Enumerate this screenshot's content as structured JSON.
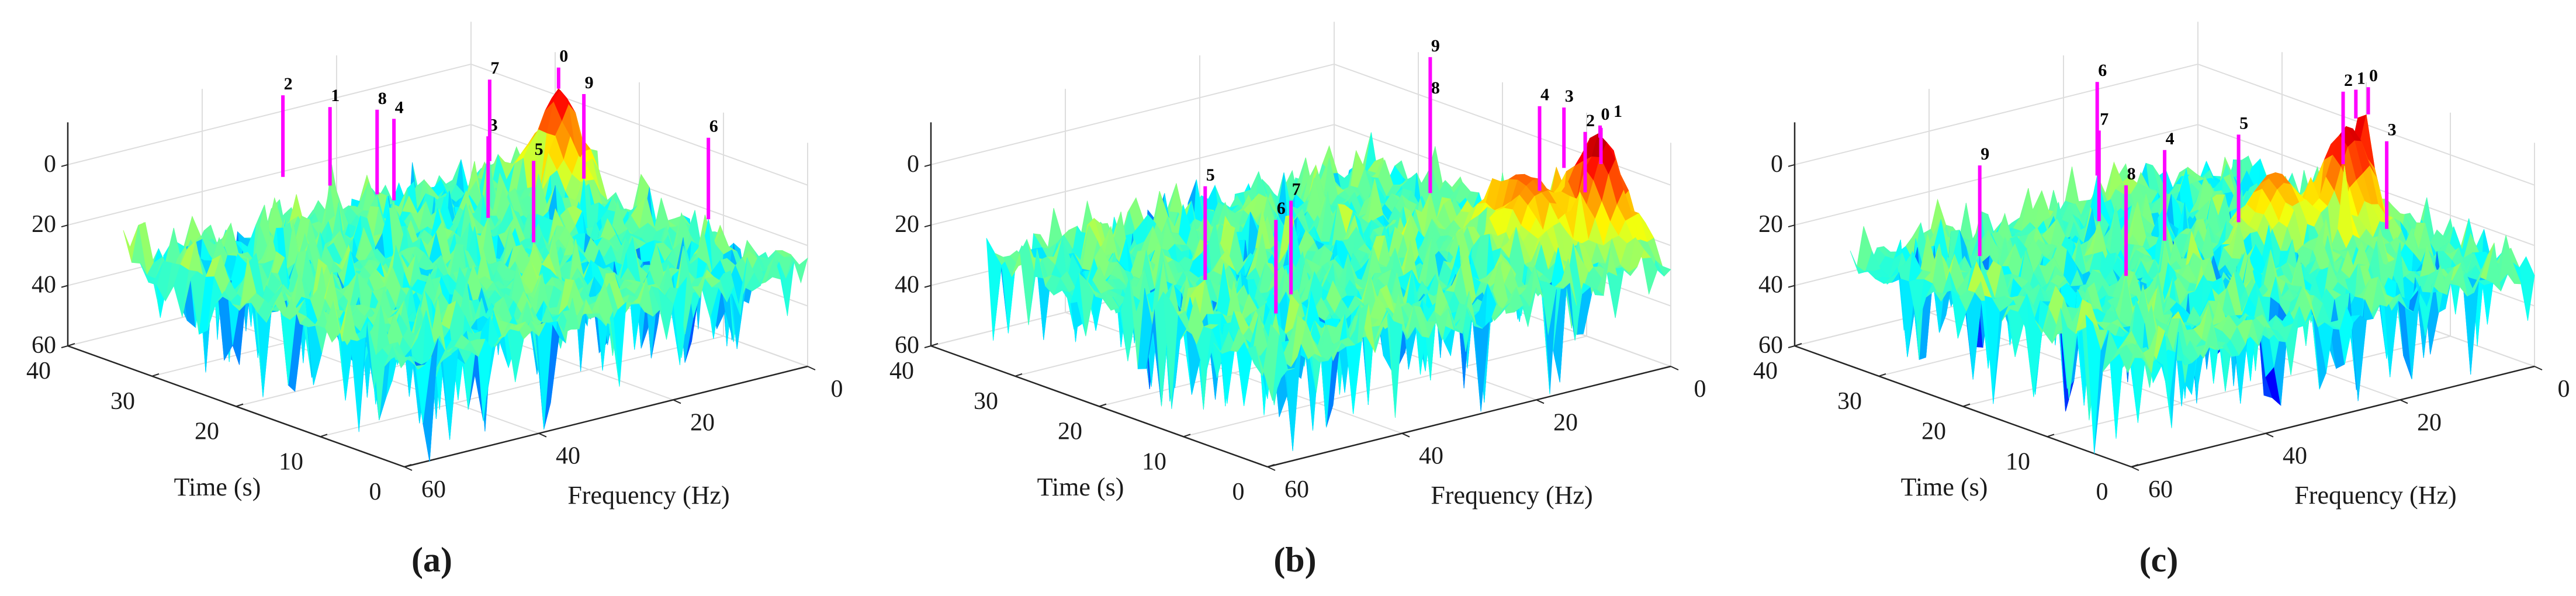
{
  "figure": {
    "panels": [
      {
        "caption": "(a)"
      },
      {
        "caption": "(b)"
      },
      {
        "caption": "(c)"
      }
    ]
  },
  "chart_data": [
    {
      "type": "surface",
      "caption": "(a)",
      "xlabel": "Frequency (Hz)",
      "ylabel": "Time (s)",
      "zlabel": "",
      "x_ticks": [
        60,
        40,
        20,
        0
      ],
      "y_ticks": [
        0,
        10,
        20,
        30,
        40
      ],
      "z_ticks": [
        0,
        20,
        40,
        60
      ],
      "xlim": [
        0,
        60
      ],
      "ylim": [
        0,
        40
      ],
      "zlim": [
        -14,
        60
      ],
      "z_reversed": true,
      "colormap": "jet",
      "grid": true,
      "marker_color": "#ff00ff",
      "surface_peaks": [
        {
          "freq": 3,
          "time": 27,
          "z": -6,
          "spread_freq": 3,
          "spread_time": 3
        }
      ],
      "peaks": [
        {
          "label": "0",
          "freq": 2,
          "time": 28,
          "z_base": -5,
          "z_top": -12
        },
        {
          "label": "1",
          "freq": 31,
          "time": 32,
          "z_base": 15,
          "z_top": -11
        },
        {
          "label": "2",
          "freq": 33,
          "time": 36,
          "z_base": 15,
          "z_top": -12
        },
        {
          "label": "3",
          "freq": 25,
          "time": 18,
          "z_base": 15,
          "z_top": -12
        },
        {
          "label": "4",
          "freq": 29,
          "time": 26,
          "z_base": 15,
          "z_top": -12
        },
        {
          "label": "5",
          "freq": 27,
          "time": 11,
          "z_base": 15,
          "z_top": -12
        },
        {
          "label": "6",
          "freq": 6,
          "time": 7,
          "z_base": 15,
          "z_top": -12
        },
        {
          "label": "7",
          "freq": 11,
          "time": 29,
          "z_base": 15,
          "z_top": -12
        },
        {
          "label": "8",
          "freq": 29,
          "time": 28,
          "z_base": 15,
          "z_top": -13
        },
        {
          "label": "9",
          "freq": 7,
          "time": 21,
          "z_base": 15,
          "z_top": -13
        }
      ]
    },
    {
      "type": "surface",
      "caption": "(b)",
      "xlabel": "Frequency (Hz)",
      "ylabel": "Time (s)",
      "zlabel": "",
      "x_ticks": [
        60,
        40,
        20,
        0
      ],
      "y_ticks": [
        0,
        10,
        20,
        30,
        40
      ],
      "z_ticks": [
        0,
        20,
        40,
        60
      ],
      "xlim": [
        0,
        60
      ],
      "ylim": [
        0,
        40
      ],
      "zlim": [
        -14,
        60
      ],
      "z_reversed": true,
      "colormap": "jet",
      "grid": true,
      "marker_color": "#ff00ff",
      "surface_peaks": [
        {
          "freq": 2,
          "time": 7,
          "z": -12,
          "spread_freq": 3,
          "spread_time": 4
        },
        {
          "freq": 8,
          "time": 11,
          "z": 3,
          "spread_freq": 4,
          "spread_time": 5
        }
      ],
      "peaks": [
        {
          "label": "0",
          "freq": 0.5,
          "time": 8,
          "z_base": -8,
          "z_top": -12
        },
        {
          "label": "1",
          "freq": 1,
          "time": 7.5,
          "z_base": 0,
          "z_top": -12
        },
        {
          "label": "2",
          "freq": 5.6,
          "time": 5.7,
          "z_base": 5,
          "z_top": -15
        },
        {
          "label": "3",
          "freq": 1.5,
          "time": 11.5,
          "z_base": 5,
          "z_top": -15
        },
        {
          "label": "4",
          "freq": 7,
          "time": 10,
          "z_base": 8,
          "z_top": -20
        },
        {
          "label": "5",
          "freq": 53,
          "time": 13,
          "z_base": 15,
          "z_top": -16
        },
        {
          "label": "6",
          "freq": 55,
          "time": 3,
          "z_base": 15,
          "z_top": -16
        },
        {
          "label": "7",
          "freq": 49,
          "time": 6,
          "z_base": 15,
          "z_top": -16
        },
        {
          "label": "8",
          "freq": 12,
          "time": 19,
          "z_base": 15,
          "z_top": -16
        },
        {
          "label": "9",
          "freq": 12,
          "time": 19,
          "z_base": 15,
          "z_top": -30
        }
      ]
    },
    {
      "type": "surface",
      "caption": "(c)",
      "xlabel": "Frequency (Hz)",
      "ylabel": "Time (s)",
      "zlabel": "",
      "x_ticks": [
        60,
        40,
        20,
        0
      ],
      "y_ticks": [
        0,
        10,
        20,
        30,
        40
      ],
      "z_ticks": [
        0,
        20,
        40,
        60
      ],
      "xlim": [
        0,
        60
      ],
      "ylim": [
        0,
        40
      ],
      "zlim": [
        -14,
        60
      ],
      "z_reversed": true,
      "colormap": "jet",
      "grid": true,
      "marker_color": "#ff00ff",
      "surface_peaks": [
        {
          "freq": 8,
          "time": 16,
          "z": -8,
          "spread_freq": 4,
          "spread_time": 3
        },
        {
          "freq": 16,
          "time": 18,
          "z": 5,
          "spread_freq": 4,
          "spread_time": 3
        }
      ],
      "peaks": [
        {
          "label": "0",
          "freq": 4.7,
          "time": 16,
          "z_base": -10,
          "z_top": -19
        },
        {
          "label": "1",
          "freq": 5.3,
          "time": 17,
          "z_base": -8,
          "z_top": -17.5
        },
        {
          "label": "2",
          "freq": 11.7,
          "time": 13.4,
          "z_base": 0,
          "z_top": -24
        },
        {
          "label": "3",
          "freq": 12.6,
          "time": 7.5,
          "z_base": 15,
          "z_top": -14
        },
        {
          "label": "4",
          "freq": 35,
          "time": 16,
          "z_base": 15,
          "z_top": -15
        },
        {
          "label": "5",
          "freq": 24,
          "time": 16,
          "z_base": 15,
          "z_top": -14
        },
        {
          "label": "6",
          "freq": 25,
          "time": 32,
          "z_base": 15,
          "z_top": -16
        },
        {
          "label": "7",
          "freq": 36,
          "time": 23,
          "z_base": 15,
          "z_top": -15
        },
        {
          "label": "8",
          "freq": 47,
          "time": 11,
          "z_base": 15,
          "z_top": -15
        },
        {
          "label": "9",
          "freq": 55,
          "time": 22,
          "z_base": 15,
          "z_top": -15
        }
      ]
    }
  ]
}
